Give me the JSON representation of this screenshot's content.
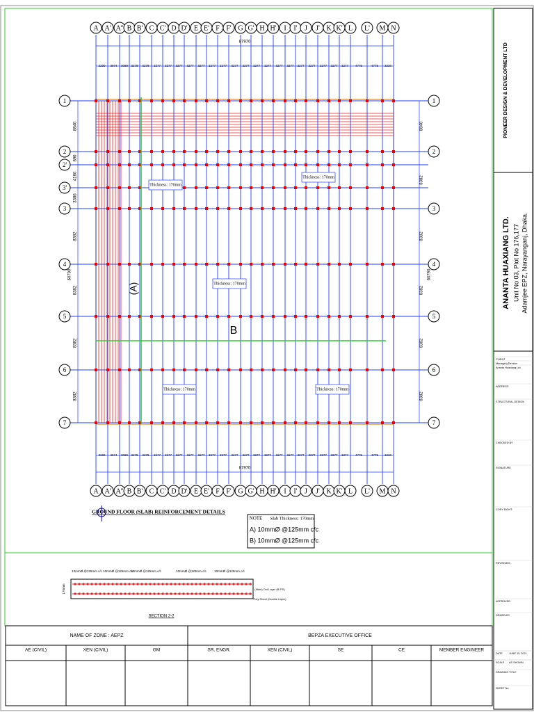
{
  "drawing": {
    "title": "GROUND FLOOR (SLAB) REINFORCEMENT DETAILS",
    "columns": [
      "A",
      "A'",
      "A''",
      "B",
      "B'",
      "C",
      "C'",
      "D",
      "D'",
      "E",
      "E'",
      "F",
      "F'",
      "G",
      "G'",
      "H",
      "H'",
      "I",
      "I'",
      "J",
      "J'",
      "K",
      "K'",
      "L",
      "L'",
      "M",
      "N"
    ],
    "rows": [
      "1",
      "2",
      "2'",
      "3'",
      "3",
      "4",
      "5",
      "6",
      "7"
    ],
    "overall_width": "87970",
    "overall_height": "60790",
    "column_spacings": [
      "3230",
      "3974",
      "3089",
      "3278",
      "3278",
      "3277",
      "3277",
      "3277",
      "3277",
      "3277",
      "3277",
      "3277",
      "3277",
      "3277",
      "3277",
      "3277",
      "3277",
      "3277",
      "3277",
      "3277",
      "3277",
      "3277",
      "3277",
      "4775",
      "4775",
      "3230"
    ],
    "left_spacings": [
      "8840",
      "896",
      "4180",
      "3386",
      "8382",
      "8382",
      "8382",
      "8382"
    ],
    "right_spacings": [
      "8840",
      "8382",
      "8382",
      "8382",
      "8382",
      "8382"
    ],
    "slab_labels": [
      "Thickness: 170mm",
      "Thickness: 170mm",
      "Thickness: 170mm",
      "Thickness: 170mm",
      "Thickness: 170mm"
    ],
    "zone_labels": [
      "(A)",
      "B"
    ]
  },
  "note": {
    "heading": "NOTE",
    "thickness": "Slab Thickness: 170mm",
    "a": "A) 10mmØ @125mm c/c",
    "b": "B) 10mmØ @125mm c/c"
  },
  "section": {
    "title": "SECTION 2-2",
    "rebar_labels": [
      "10mmØ @125mm c/c",
      "10mmØ @125mm c/c",
      "10mmØ @125mm c/c",
      "10mmØ @125mm c/c",
      "10mmØ @125mm c/c"
    ],
    "thickness": "170mm",
    "layer_top": "(Main) Out Layer (B.P.S)",
    "layer_bottom": "Poly Sheet (Double Layer)"
  },
  "approval_table": {
    "zone": "NAME OF ZONE : AEPZ",
    "office": "BEPZA EXECUTIVE OFFICE",
    "columns": [
      "AE (CIVIL)",
      "XEN (CIVIL)",
      "GM",
      "SR. ENGR.",
      "XEN (CIVIL)",
      "SE",
      "CE",
      "MEMBER ENGINEER"
    ]
  },
  "title_block": {
    "designer": "PIONEER DESIGN & DEVELOPMENT LTD",
    "client_name": "ANANTA HUAXIANG LTD.",
    "client_address_1": "Unit No 03, Plot No 176,177",
    "client_address_2": "Adamjee EPZ, Narayanganj, Dhaka.",
    "fields": [
      "CLIENT",
      "Managing Director",
      "Ananta Huaxiang Ltd.",
      "ADDRESS",
      "STRUCTURAL DESIGN",
      "CHECKED BY",
      "SIGNATURE",
      "COPY RIGHT:",
      "REVISIONS",
      "APPROVED",
      "DRAWN BY",
      "DATE",
      "JUNE 15, 2021",
      "SCALE",
      "AS SHOWN",
      "DRAWING TITLE",
      "SHEET No"
    ]
  }
}
